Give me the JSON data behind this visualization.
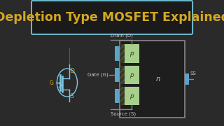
{
  "bg_color": "#2a2a2a",
  "title_text": "Depletion Type MOSFET Explained",
  "title_color": "#d4a820",
  "title_bg": "#1a1a1a",
  "title_border_color": "#6ab4c8",
  "symbol_color": "#7ec8e3",
  "label_color": "#c8c8c8",
  "gate_label": "Gate (G)",
  "drain_label": "Drain (D)",
  "source_label": "Source (S)",
  "ss_label": "SS",
  "p_label": "p",
  "n_label": "n",
  "p_color": "#a8d08d",
  "gate_metal_color": "#5ba3c9",
  "oxide_hatch_color": "#555540",
  "oxide_bg_color": "#383828",
  "outer_box_stroke": "#888888",
  "outer_box_fill": "#1e1e1e",
  "wire_color": "#888888",
  "yellow_label": "#d4a820"
}
